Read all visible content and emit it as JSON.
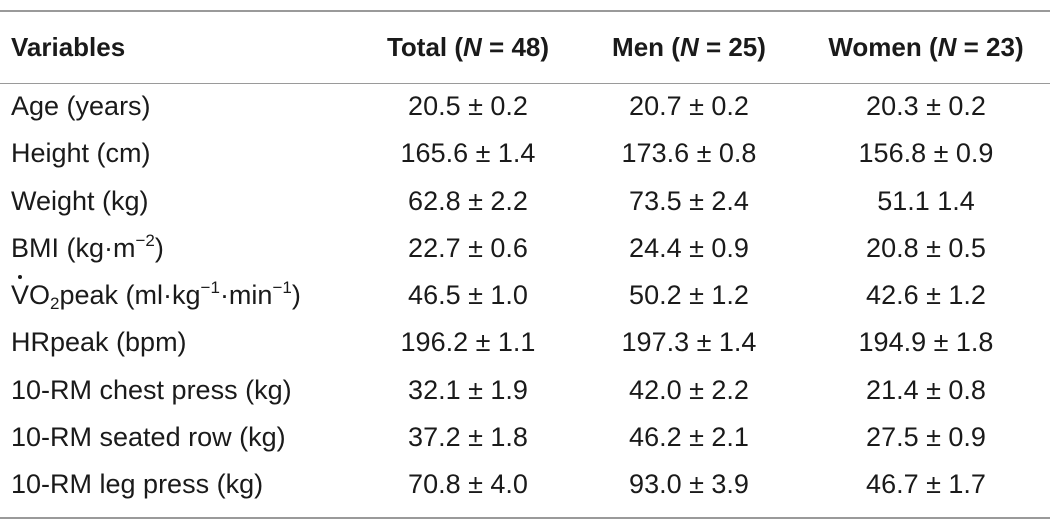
{
  "headers": {
    "variables": "Variables",
    "total": {
      "prefix": "Total (",
      "n": "N",
      "suffix": " = 48)"
    },
    "men": {
      "prefix": "Men (",
      "n": "N",
      "suffix": " = 25)"
    },
    "women": {
      "prefix": "Women (",
      "n": "N",
      "suffix": " = 23)"
    }
  },
  "rows": [
    {
      "label": "Age (years)",
      "total": "20.5 ± 0.2",
      "men": "20.7 ± 0.2",
      "women": "20.3 ± 0.2"
    },
    {
      "label": "Height (cm)",
      "total": "165.6 ± 1.4",
      "men": "173.6 ± 0.8",
      "women": "156.8 ± 0.9"
    },
    {
      "label": "Weight (kg)",
      "total": "62.8 ± 2.2",
      "men": "73.5 ± 2.4",
      "women": "51.1 1.4"
    },
    {
      "label_pre": "BMI (kg·m",
      "label_sup": "−2",
      "label_post": ")",
      "total": "22.7 ± 0.6",
      "men": "24.4 ± 0.9",
      "women": "20.8 ± 0.5"
    },
    {
      "label_v": "V",
      "label_o": "O",
      "label_sub": "2",
      "label_peak": "peak (ml·kg",
      "label_sup1": "−1",
      "label_mid": "·min",
      "label_sup2": "−1",
      "label_post": ")",
      "total": "46.5 ± 1.0",
      "men": "50.2 ± 1.2",
      "women": "42.6 ± 1.2"
    },
    {
      "label": "HRpeak (bpm)",
      "total": "196.2 ± 1.1",
      "men": "197.3 ± 1.4",
      "women": "194.9 ± 1.8"
    },
    {
      "label": "10-RM chest press (kg)",
      "total": "32.1 ± 1.9",
      "men": "42.0 ± 2.2",
      "women": "21.4 ± 0.8"
    },
    {
      "label": "10-RM seated row (kg)",
      "total": "37.2 ± 1.8",
      "men": "46.2 ± 2.1",
      "women": "27.5 ± 0.9"
    },
    {
      "label": "10-RM leg press (kg)",
      "total": "70.8 ± 4.0",
      "men": "93.0 ± 3.9",
      "women": "46.7 ± 1.7"
    }
  ]
}
